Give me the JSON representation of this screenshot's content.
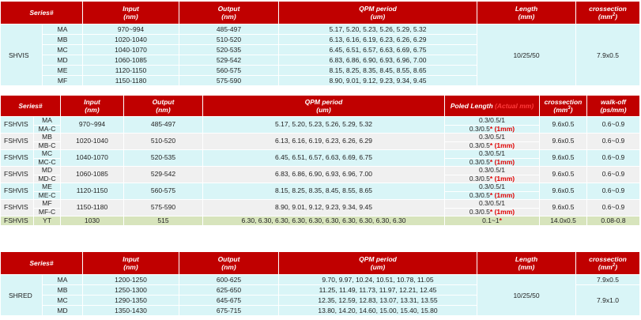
{
  "table1": {
    "headers": {
      "series": "Series#",
      "input": "Input",
      "input_unit": "(nm)",
      "output": "Output",
      "output_unit": "(nm)",
      "qpm": "QPM period",
      "qpm_unit": "(um)",
      "length": "Length",
      "length_unit": "(mm)",
      "cross": "crossection",
      "cross_unit": "(mm",
      "cross_sup": "2",
      "cross_close": ")"
    },
    "group_label": "SHVIS",
    "length_value": "10/25/50",
    "cross_value": "7.9x0.5",
    "rows": [
      {
        "id": "MA",
        "input": "970~994",
        "output": "485-497",
        "qpm": "5.17, 5.20, 5.23, 5.26, 5.29, 5.32"
      },
      {
        "id": "MB",
        "input": "1020-1040",
        "output": "510-520",
        "qpm": "6.13, 6.16, 6.19, 6.23, 6.26, 6.29"
      },
      {
        "id": "MC",
        "input": "1040-1070",
        "output": "520-535",
        "qpm": "6.45, 6.51, 6.57, 6.63, 6.69, 6.75"
      },
      {
        "id": "MD",
        "input": "1060-1085",
        "output": "529-542",
        "qpm": "6.83, 6.86, 6.90, 6.93, 6.96, 7.00"
      },
      {
        "id": "ME",
        "input": "1120-1150",
        "output": "560-575",
        "qpm": "8.15, 8.25, 8.35, 8.45, 8.55, 8.65"
      },
      {
        "id": "MF",
        "input": "1150-1180",
        "output": "575-590",
        "qpm": "8.90, 9.01, 9.12, 9.23, 9.34, 9.45"
      }
    ]
  },
  "table2": {
    "headers": {
      "series": "Series#",
      "input": "Input",
      "input_unit": "(nm)",
      "output": "Output",
      "output_unit": "(nm)",
      "qpm": "QPM period",
      "qpm_unit": "(um)",
      "poled": "Poled Length",
      "poled_actual": "(Actual mm)",
      "cross": "crossection",
      "cross_unit": "(mm",
      "cross_sup": "3",
      "cross_close": ")",
      "walk": "walk-off",
      "walk_unit": "(ps/mm)"
    },
    "rows": [
      {
        "group": "FSHVIS",
        "id1": "MA",
        "id2": "MA-C",
        "input": "970~994",
        "output": "485-497",
        "qpm": "5.17, 5.20, 5.23, 5.26, 5.29, 5.32",
        "poled1": "0.3/0.5/1",
        "poled2": "0.3/0.5",
        "star": "*",
        "actual": "(1mm)",
        "cross": "9.6x0.5",
        "walk": "0.6~0.9"
      },
      {
        "group": "FSHVIS",
        "id1": "MB",
        "id2": "MB-C",
        "input": "1020-1040",
        "output": "510-520",
        "qpm": "6.13, 6.16, 6.19, 6.23, 6.26, 6.29",
        "poled1": "0.3/0.5/1",
        "poled2": "0.3/0.5",
        "star": "*",
        "actual": "(1mm)",
        "cross": "9.6x0.5",
        "walk": "0.6~0.9"
      },
      {
        "group": "FSHVIS",
        "id1": "MC",
        "id2": "MC-C",
        "input": "1040-1070",
        "output": "520-535",
        "qpm": "6.45, 6.51, 6.57, 6.63, 6.69, 6.75",
        "poled1": "0.3/0.5/1",
        "poled2": "0.3/0.5",
        "star": "*",
        "actual": "(1mm)",
        "cross": "9.6x0.5",
        "walk": "0.6~0.9"
      },
      {
        "group": "FSHVIS",
        "id1": "MD",
        "id2": "MD-C",
        "input": "1060-1085",
        "output": "529-542",
        "qpm": "6.83, 6.86, 6.90, 6.93, 6.96, 7.00",
        "poled1": "0.3/0.5/1",
        "poled2": "0.3/0.5",
        "star": "*",
        "actual": "(1mm)",
        "cross": "9.6x0.5",
        "walk": "0.6~0.9"
      },
      {
        "group": "FSHVIS",
        "id1": "ME",
        "id2": "ME-C",
        "input": "1120-1150",
        "output": "560-575",
        "qpm": "8.15, 8.25, 8.35, 8.45, 8.55, 8.65",
        "poled1": "0.3/0.5/1",
        "poled2": "0.3/0.5",
        "star": "*",
        "actual": "(1mm)",
        "cross": "9.6x0.5",
        "walk": "0.6~0.9"
      },
      {
        "group": "FSHVIS",
        "id1": "MF",
        "id2": "MF-C",
        "input": "1150-1180",
        "output": "575-590",
        "qpm": "8.90, 9.01, 9.12, 9.23, 9.34, 9.45",
        "poled1": "0.3/0.5/1",
        "poled2": "0.3/0.5",
        "star": "*",
        "actual": "(1mm)",
        "cross": "9.6x0.5",
        "walk": "0.6~0.9"
      }
    ],
    "yt_row": {
      "group": "FSHVIS",
      "id": "YT",
      "input": "1030",
      "output": "515",
      "qpm": "6.30, 6.30, 6.30, 6.30, 6.30, 6.30, 6.30, 6.30, 6.30, 6.30",
      "poled": "0.1~1",
      "star": "*",
      "cross": "14.0x0.5",
      "walk": "0.08-0.8"
    }
  },
  "table3": {
    "headers": {
      "series": "Series#",
      "input": "Input",
      "input_unit": "(nm)",
      "output": "Output",
      "output_unit": "(nm)",
      "qpm": "QPM period",
      "qpm_unit": "(um)",
      "length": "Length",
      "length_unit": "(mm)",
      "cross": "crossection",
      "cross_unit": "(mm",
      "cross_sup": "2",
      "cross_close": ")"
    },
    "group_label": "SHRED",
    "length_value": "10/25/50",
    "cross_first": "7.9x0.5",
    "cross_rest": "7.9x1.0",
    "rows": [
      {
        "id": "MA",
        "input": "1200-1250",
        "output": "600-625",
        "qpm": "9.70, 9.97, 10.24, 10.51, 10.78, 11.05"
      },
      {
        "id": "MB",
        "input": "1250-1300",
        "output": "625-650",
        "qpm": "11.25, 11.49, 11.73, 11.97, 12.21, 12.45"
      },
      {
        "id": "MC",
        "input": "1290-1350",
        "output": "645-675",
        "qpm": "12.35, 12.59, 12.83, 13.07, 13.31, 13.55"
      },
      {
        "id": "MD",
        "input": "1350-1430",
        "output": "675-715",
        "qpm": "13.80, 14.20, 14.60, 15.00, 15.40, 15.80"
      }
    ]
  }
}
